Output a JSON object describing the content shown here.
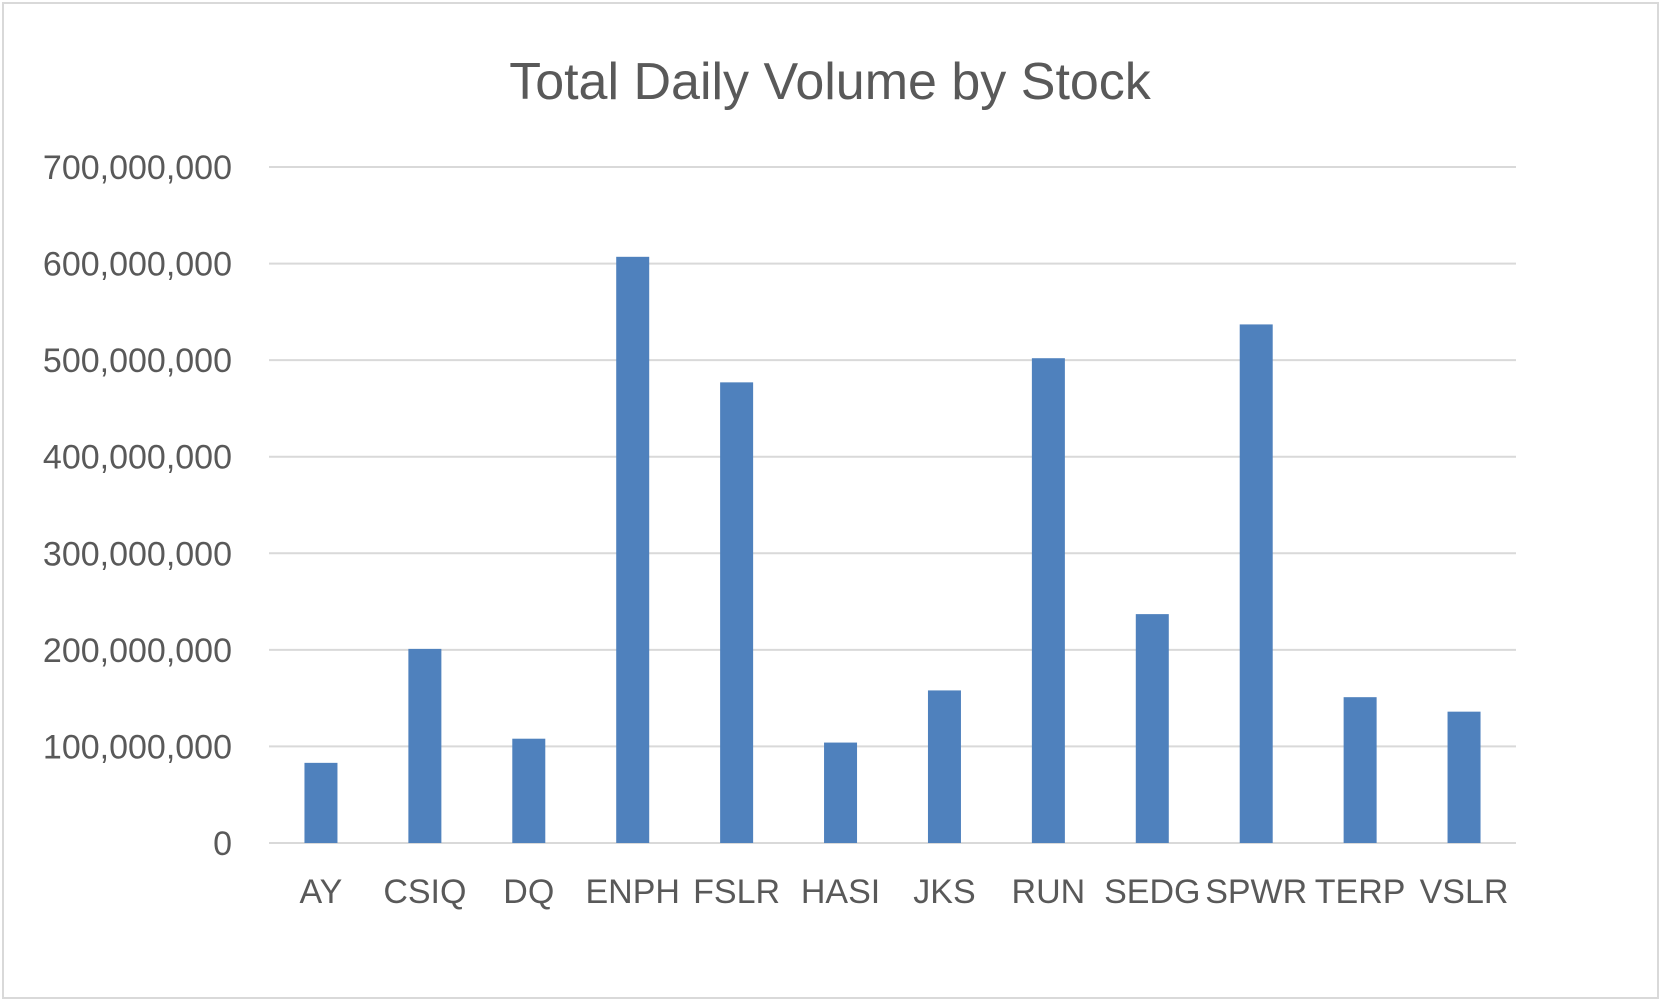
{
  "chart_data": {
    "type": "bar",
    "title": "Total Daily Volume by Stock",
    "xlabel": "",
    "ylabel": "",
    "categories": [
      "AY",
      "CSIQ",
      "DQ",
      "ENPH",
      "FSLR",
      "HASI",
      "JKS",
      "RUN",
      "SEDG",
      "SPWR",
      "TERP",
      "VSLR"
    ],
    "values": [
      83000000,
      201000000,
      108000000,
      607000000,
      477000000,
      104000000,
      158000000,
      502000000,
      237000000,
      537000000,
      151000000,
      136000000
    ],
    "ylim": [
      0,
      700000000
    ],
    "yticks": [
      0,
      100000000,
      200000000,
      300000000,
      400000000,
      500000000,
      600000000,
      700000000
    ],
    "ytick_labels": [
      "0",
      "100,000,000",
      "200,000,000",
      "300,000,000",
      "400,000,000",
      "500,000,000",
      "600,000,000",
      "700,000,000"
    ],
    "grid": true,
    "legend": "none",
    "bar_color": "#4f81bd",
    "grid_color": "#d9d9d9",
    "text_color": "#595959"
  }
}
